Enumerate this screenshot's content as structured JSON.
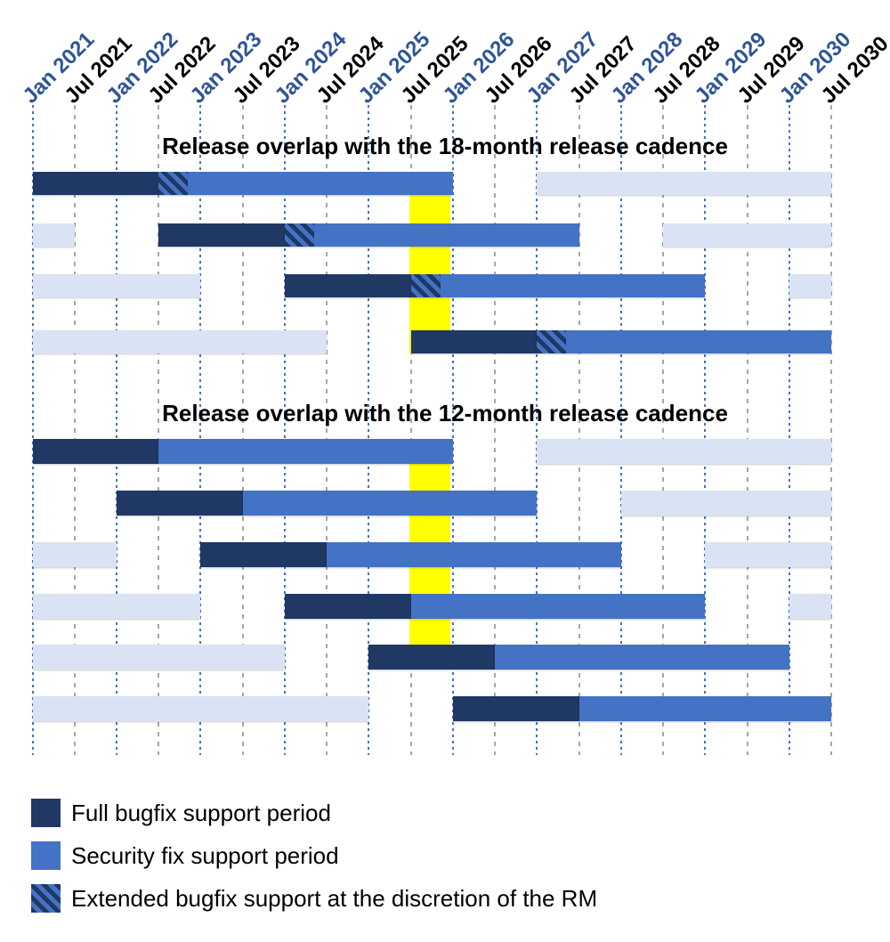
{
  "colors": {
    "full_bugfix": "#1f3864",
    "security_fix": "#4472c4",
    "other_cycle": "#dae3f3",
    "highlight": "#ffff00",
    "jan_label": "#2f5597",
    "jul_label": "#000000",
    "jan_gridline": "#4472c4",
    "jul_gridline": "#a6a6a6"
  },
  "chart_data": {
    "type": "gantt",
    "title": "",
    "x_axis": {
      "unit": "half-year ticks, decimal years (2021.0 = Jan 2021, 2021.5 = Jul 2021)",
      "range": [
        2021.0,
        2030.5
      ],
      "labels": [
        "Jan 2021",
        "Jul 2021",
        "Jan 2022",
        "Jul 2022",
        "Jan 2023",
        "Jul 2023",
        "Jan 2024",
        "Jul 2024",
        "Jan 2025",
        "Jul 2025",
        "Jan 2026",
        "Jul 2026",
        "Jan 2027",
        "Jul 2027",
        "Jan 2028",
        "Jul 2028",
        "Jan 2029",
        "Jul 2029",
        "Jan 2030",
        "Jul 2030"
      ]
    },
    "highlight_column": {
      "start": 2025.5,
      "end": 2026.0
    },
    "sections": [
      {
        "title": "Release overlap with the 18-month release cadence",
        "cadence_months": 18,
        "rows": [
          {
            "prev_end": null,
            "start": 2021.0,
            "full_end": 2022.5,
            "ext_end": 2022.85,
            "sec_end": 2026.0,
            "next_start": 2027.0
          },
          {
            "prev_end": 2021.5,
            "start": 2022.5,
            "full_end": 2024.0,
            "ext_end": 2024.35,
            "sec_end": 2027.5,
            "next_start": 2028.5
          },
          {
            "prev_end": 2023.0,
            "start": 2024.0,
            "full_end": 2025.5,
            "ext_end": 2025.85,
            "sec_end": 2029.0,
            "next_start": 2030.0
          },
          {
            "prev_end": 2024.5,
            "start": 2025.5,
            "full_end": 2027.0,
            "ext_end": 2027.35,
            "sec_end": 2030.5,
            "next_start": null
          }
        ]
      },
      {
        "title": "Release overlap with the 12-month release cadence",
        "cadence_months": 12,
        "rows": [
          {
            "prev_end": null,
            "start": 2021.0,
            "full_end": 2022.5,
            "ext_end": null,
            "sec_end": 2026.0,
            "next_start": 2027.0
          },
          {
            "prev_end": null,
            "start": 2022.0,
            "full_end": 2023.5,
            "ext_end": null,
            "sec_end": 2027.0,
            "next_start": 2028.0
          },
          {
            "prev_end": 2022.0,
            "start": 2023.0,
            "full_end": 2024.5,
            "ext_end": null,
            "sec_end": 2028.0,
            "next_start": 2029.0
          },
          {
            "prev_end": 2023.0,
            "start": 2024.0,
            "full_end": 2025.5,
            "ext_end": null,
            "sec_end": 2029.0,
            "next_start": 2030.0
          },
          {
            "prev_end": 2024.0,
            "start": 2025.0,
            "full_end": 2026.5,
            "ext_end": null,
            "sec_end": 2030.0,
            "next_start": null
          },
          {
            "prev_end": 2025.0,
            "start": 2026.0,
            "full_end": 2027.5,
            "ext_end": null,
            "sec_end": 2031.0,
            "next_start": null
          }
        ]
      }
    ],
    "legend": [
      {
        "key": "full_bugfix",
        "label": "Full bugfix support period"
      },
      {
        "key": "security_fix",
        "label": "Security fix support period"
      },
      {
        "key": "extended_bugfix",
        "label": "Extended bugfix support at the discretion of the RM"
      }
    ]
  }
}
